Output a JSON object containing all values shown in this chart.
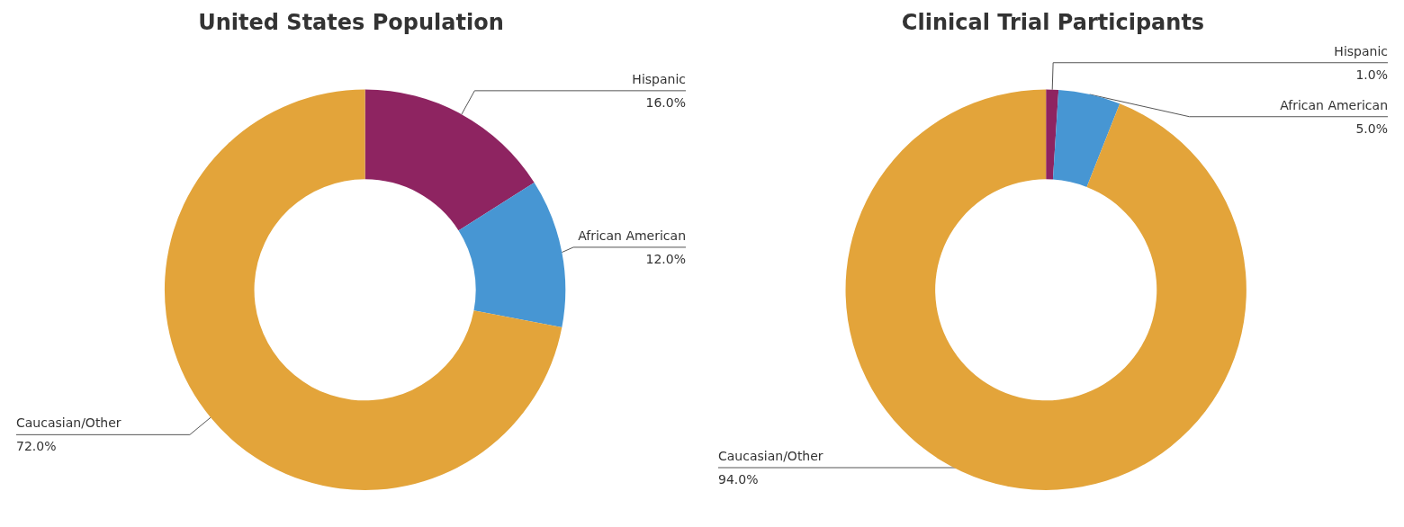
{
  "chart_data": [
    {
      "type": "donut",
      "title": "United States Population",
      "categories": [
        "Hispanic",
        "African American",
        "Caucasian/Other"
      ],
      "values": [
        16,
        12,
        72
      ],
      "colors": [
        "#8e2461",
        "#4796d3",
        "#e3a43a"
      ],
      "value_labels": [
        "16.0%",
        "12.0%",
        "72.0%"
      ]
    },
    {
      "type": "donut",
      "title": "Clinical Trial Participants",
      "categories": [
        "Hispanic",
        "African American",
        "Caucasian/Other"
      ],
      "values": [
        1,
        5,
        94
      ],
      "colors": [
        "#8e2461",
        "#4796d3",
        "#e3a43a"
      ],
      "value_labels": [
        "1.0%",
        "5.0%",
        "94.0%"
      ]
    }
  ]
}
